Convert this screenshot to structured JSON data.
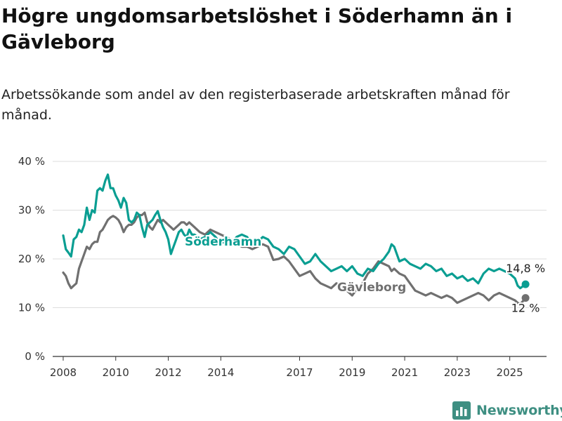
{
  "title": "Högre ungdomsarbetslöshet i Söderhamn än i Gävleborg",
  "subtitle": "Arbetssökande som andel av den registerbaserade arbetskraften månad för månad.",
  "brand": "Newsworthy",
  "colors": {
    "soderhamn": "#0a9e92",
    "gavleborg": "#707070",
    "grid": "#dddddd",
    "axis": "#333333"
  },
  "chart_data": {
    "type": "line",
    "title": "Högre ungdomsarbetslöshet i Söderhamn än i Gävleborg",
    "subtitle": "Arbetssökande som andel av den registerbaserade arbetskraften månad för månad.",
    "xlim": [
      2007.6,
      2026.4
    ],
    "ylim": [
      0,
      40
    ],
    "x_ticks": [
      2008,
      2010,
      2012,
      2014,
      2017,
      2019,
      2021,
      2023,
      2025
    ],
    "x_tick_labels": [
      "2008",
      "2010",
      "2012",
      "2014",
      "2017",
      "2019",
      "2021",
      "2023",
      "2025"
    ],
    "y_ticks": [
      0,
      10,
      20,
      30,
      40
    ],
    "y_tick_labels": [
      "0 %",
      "10 %",
      "20 %",
      "30 %",
      "40 %"
    ],
    "grid": true,
    "legend": "inline labels",
    "series": [
      {
        "name": "Söderhamn",
        "label": "Söderhamn",
        "end_label": "14,8 %",
        "x": [
          2008.0,
          2008.1,
          2008.2,
          2008.3,
          2008.4,
          2008.5,
          2008.6,
          2008.7,
          2008.8,
          2008.9,
          2009.0,
          2009.1,
          2009.2,
          2009.3,
          2009.4,
          2009.5,
          2009.6,
          2009.7,
          2009.8,
          2009.9,
          2010.0,
          2010.1,
          2010.2,
          2010.3,
          2010.4,
          2010.5,
          2010.6,
          2010.7,
          2010.8,
          2010.9,
          2011.0,
          2011.1,
          2011.2,
          2011.3,
          2011.4,
          2011.5,
          2011.6,
          2011.7,
          2011.8,
          2011.9,
          2012.0,
          2012.1,
          2012.2,
          2012.3,
          2012.4,
          2012.5,
          2012.6,
          2012.7,
          2012.8,
          2012.9,
          2013.0,
          2013.2,
          2013.4,
          2013.6,
          2013.8,
          2014.0,
          2014.2,
          2014.4,
          2014.6,
          2014.8,
          2015.0,
          2015.2,
          2015.4,
          2015.6,
          2015.8,
          2016.0,
          2016.2,
          2016.4,
          2016.6,
          2016.8,
          2017.0,
          2017.2,
          2017.4,
          2017.6,
          2017.8,
          2018.0,
          2018.2,
          2018.4,
          2018.6,
          2018.8,
          2019.0,
          2019.2,
          2019.4,
          2019.6,
          2019.8,
          2020.0,
          2020.2,
          2020.4,
          2020.5,
          2020.6,
          2020.8,
          2021.0,
          2021.2,
          2021.4,
          2021.6,
          2021.8,
          2022.0,
          2022.2,
          2022.4,
          2022.6,
          2022.8,
          2023.0,
          2023.2,
          2023.4,
          2023.6,
          2023.8,
          2024.0,
          2024.2,
          2024.4,
          2024.6,
          2024.8,
          2025.0,
          2025.2,
          2025.3,
          2025.4,
          2025.6
        ],
        "values": [
          24.8,
          22.0,
          21.3,
          20.5,
          24.0,
          24.5,
          26.0,
          25.5,
          27.0,
          30.5,
          28.0,
          30.0,
          29.5,
          34.0,
          34.5,
          34.0,
          36.0,
          37.3,
          34.5,
          34.5,
          33.0,
          32.0,
          30.5,
          32.5,
          31.5,
          28.0,
          27.5,
          28.0,
          29.5,
          29.0,
          26.5,
          24.5,
          27.0,
          27.5,
          28.0,
          29.0,
          29.8,
          28.0,
          26.5,
          25.5,
          24.0,
          21.0,
          22.5,
          24.0,
          25.5,
          26.0,
          25.0,
          24.5,
          26.0,
          25.0,
          25.0,
          24.0,
          24.5,
          25.5,
          24.5,
          23.0,
          24.0,
          23.0,
          24.5,
          25.0,
          24.5,
          23.0,
          23.5,
          24.5,
          24.0,
          22.5,
          22.0,
          21.0,
          22.5,
          22.0,
          20.5,
          19.0,
          19.5,
          21.0,
          19.5,
          18.5,
          17.5,
          18.0,
          18.5,
          17.5,
          18.5,
          17.0,
          16.5,
          18.0,
          17.5,
          19.0,
          20.0,
          21.5,
          23.0,
          22.5,
          19.5,
          20.0,
          19.0,
          18.5,
          18.0,
          19.0,
          18.5,
          17.5,
          18.0,
          16.5,
          17.0,
          16.0,
          16.5,
          15.5,
          16.0,
          15.0,
          17.0,
          18.0,
          17.5,
          18.0,
          17.5,
          17.0,
          16.0,
          14.5,
          14.0,
          14.8
        ]
      },
      {
        "name": "Gävleborg",
        "label": "Gävleborg",
        "end_label": "12 %",
        "x": [
          2008.0,
          2008.1,
          2008.2,
          2008.3,
          2008.4,
          2008.5,
          2008.6,
          2008.7,
          2008.8,
          2008.9,
          2009.0,
          2009.1,
          2009.2,
          2009.3,
          2009.4,
          2009.5,
          2009.6,
          2009.7,
          2009.8,
          2009.9,
          2010.0,
          2010.1,
          2010.2,
          2010.3,
          2010.4,
          2010.5,
          2010.6,
          2010.7,
          2010.8,
          2010.9,
          2011.0,
          2011.1,
          2011.2,
          2011.3,
          2011.4,
          2011.5,
          2011.6,
          2011.7,
          2011.8,
          2011.9,
          2012.0,
          2012.1,
          2012.2,
          2012.3,
          2012.4,
          2012.5,
          2012.6,
          2012.7,
          2012.8,
          2012.9,
          2013.0,
          2013.2,
          2013.4,
          2013.6,
          2013.8,
          2014.0,
          2014.2,
          2014.4,
          2014.6,
          2014.8,
          2015.0,
          2015.2,
          2015.4,
          2015.6,
          2015.8,
          2016.0,
          2016.2,
          2016.4,
          2016.6,
          2016.8,
          2017.0,
          2017.2,
          2017.4,
          2017.6,
          2017.8,
          2018.0,
          2018.2,
          2018.4,
          2018.6,
          2018.8,
          2019.0,
          2019.2,
          2019.4,
          2019.6,
          2019.8,
          2020.0,
          2020.2,
          2020.4,
          2020.5,
          2020.6,
          2020.8,
          2021.0,
          2021.2,
          2021.4,
          2021.6,
          2021.8,
          2022.0,
          2022.2,
          2022.4,
          2022.6,
          2022.8,
          2023.0,
          2023.2,
          2023.4,
          2023.6,
          2023.8,
          2024.0,
          2024.2,
          2024.4,
          2024.6,
          2024.8,
          2025.0,
          2025.2,
          2025.3,
          2025.4,
          2025.6
        ],
        "values": [
          17.2,
          16.5,
          15.0,
          14.0,
          14.5,
          15.0,
          18.0,
          19.5,
          21.0,
          22.5,
          22.0,
          23.0,
          23.5,
          23.5,
          25.5,
          26.0,
          27.0,
          28.0,
          28.5,
          28.8,
          28.5,
          28.0,
          27.0,
          25.5,
          26.5,
          27.0,
          27.0,
          27.5,
          28.5,
          29.0,
          29.0,
          29.5,
          27.5,
          26.5,
          26.0,
          27.0,
          28.0,
          27.5,
          28.0,
          27.5,
          27.0,
          26.5,
          26.0,
          26.5,
          27.0,
          27.5,
          27.5,
          27.0,
          27.5,
          27.0,
          26.5,
          25.5,
          25.0,
          26.0,
          25.5,
          25.0,
          24.5,
          24.0,
          23.0,
          22.5,
          22.5,
          22.0,
          22.5,
          23.0,
          22.5,
          19.8,
          20.0,
          20.5,
          19.5,
          18.0,
          16.5,
          17.0,
          17.5,
          16.0,
          15.0,
          14.5,
          14.0,
          15.0,
          14.5,
          13.5,
          12.5,
          14.0,
          15.0,
          17.0,
          18.0,
          19.5,
          19.0,
          18.5,
          17.5,
          18.0,
          17.0,
          16.5,
          15.0,
          13.5,
          13.0,
          12.5,
          13.0,
          12.5,
          12.0,
          12.5,
          12.0,
          11.0,
          11.5,
          12.0,
          12.5,
          13.0,
          12.5,
          11.5,
          12.5,
          13.0,
          12.5,
          12.0,
          11.5,
          11.0,
          10.7,
          12.0
        ]
      }
    ]
  }
}
